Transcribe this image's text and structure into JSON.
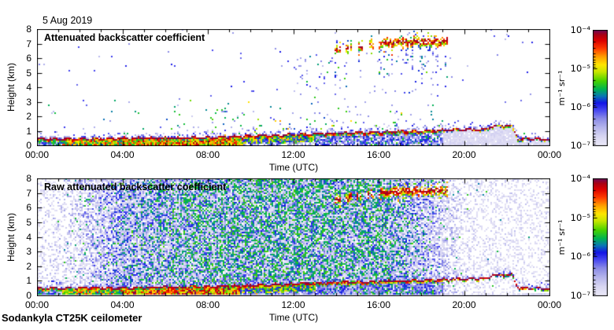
{
  "page": {
    "date_label": "5 Aug 2019",
    "footer_label": "Sodankyla CT25K ceilometer",
    "background": "#ffffff"
  },
  "colormap": {
    "scale": "log10",
    "value_range_log10": [
      -7,
      -4
    ],
    "stops": [
      [
        0.0,
        "#eceaf8"
      ],
      [
        0.08,
        "#d8d6f2"
      ],
      [
        0.16,
        "#b4b4ec"
      ],
      [
        0.24,
        "#8888e6"
      ],
      [
        0.31,
        "#4444f0"
      ],
      [
        0.37,
        "#1414e6"
      ],
      [
        0.43,
        "#0a78b4"
      ],
      [
        0.49,
        "#00b450"
      ],
      [
        0.56,
        "#46d200"
      ],
      [
        0.64,
        "#c8e600"
      ],
      [
        0.7,
        "#ffe600"
      ],
      [
        0.77,
        "#ffa000"
      ],
      [
        0.84,
        "#ff3c00"
      ],
      [
        0.91,
        "#dc0000"
      ],
      [
        0.96,
        "#aa0014"
      ],
      [
        1.0,
        "#6e0a5a"
      ]
    ]
  },
  "chart_data": [
    {
      "type": "heatmap",
      "title": "Attenuated backscatter coefficient",
      "xlabel": "Time (UTC)",
      "ylabel": "Height (km)",
      "x_hours_range": [
        0,
        24
      ],
      "y_km_range": [
        0,
        8
      ],
      "xtick_labels": [
        "00:00",
        "04:00",
        "08:00",
        "12:00",
        "16:00",
        "20:00",
        "00:00"
      ],
      "xtick_hours": [
        0,
        4,
        8,
        12,
        16,
        20,
        24
      ],
      "ytick_labels": [
        "0",
        "1",
        "2",
        "3",
        "4",
        "5",
        "6",
        "7",
        "8"
      ],
      "grid": false,
      "colorbar": {
        "tick_labels": [
          "10⁻⁴",
          "10⁻⁵",
          "10⁻⁶",
          "10⁻⁷"
        ],
        "units": "m⁻¹ sr⁻¹",
        "scale": "log10",
        "value_range_log10": [
          -7,
          -4
        ],
        "position": "right"
      },
      "features": {
        "seed": 11,
        "boundary_layer_top_km": [
          [
            0,
            0.52
          ],
          [
            4,
            0.56
          ],
          [
            8,
            0.63
          ],
          [
            11,
            0.76
          ],
          [
            14,
            0.92
          ],
          [
            17,
            1.02
          ],
          [
            19,
            1.12
          ],
          [
            21,
            1.2
          ],
          [
            21.3,
            1.42
          ],
          [
            22.2,
            1.45
          ],
          [
            22.5,
            0.55
          ],
          [
            24,
            0.5
          ]
        ],
        "surface_intense_hours": [
          0,
          9.5
        ],
        "cloud_layer": {
          "hours": [
            13.8,
            19.25
          ],
          "base_km": [
            [
              13.8,
              6.35
            ],
            [
              15,
              6.45
            ],
            [
              16,
              6.7
            ],
            [
              17,
              6.85
            ],
            [
              19.25,
              6.9
            ]
          ],
          "thickness_km": 0.45,
          "intermittent_before_hour": 16
        },
        "virga_hours": [
          13.8,
          19.25
        ],
        "evening_attenuated_after_hour": 19,
        "noise": null
      }
    },
    {
      "type": "heatmap",
      "title": "Raw attenuated backscatter coefficient",
      "xlabel": "Time (UTC)",
      "ylabel": "Height (km)",
      "x_hours_range": [
        0,
        24
      ],
      "y_km_range": [
        0,
        8
      ],
      "xtick_labels": [
        "00:00",
        "04:00",
        "08:00",
        "12:00",
        "16:00",
        "20:00",
        "00:00"
      ],
      "xtick_hours": [
        0,
        4,
        8,
        12,
        16,
        20,
        24
      ],
      "ytick_labels": [
        "0",
        "1",
        "2",
        "3",
        "4",
        "5",
        "6",
        "7",
        "8"
      ],
      "grid": false,
      "colorbar": {
        "tick_labels": [
          "10⁻⁴",
          "10⁻⁵",
          "10⁻⁶",
          "10⁻⁷"
        ],
        "units": "m⁻¹ sr⁻¹",
        "scale": "log10",
        "value_range_log10": [
          -7,
          -4
        ],
        "position": "right"
      },
      "features": {
        "seed": 77,
        "boundary_layer_top_km": [
          [
            0,
            0.52
          ],
          [
            4,
            0.56
          ],
          [
            8,
            0.63
          ],
          [
            11,
            0.76
          ],
          [
            14,
            0.92
          ],
          [
            17,
            1.02
          ],
          [
            19,
            1.12
          ],
          [
            21,
            1.2
          ],
          [
            21.3,
            1.42
          ],
          [
            22.2,
            1.45
          ],
          [
            22.5,
            0.55
          ],
          [
            24,
            0.5
          ]
        ],
        "surface_intense_hours": [
          0,
          9.5
        ],
        "cloud_layer": {
          "hours": [
            13.8,
            19.25
          ],
          "base_km": [
            [
              13.8,
              6.35
            ],
            [
              15,
              6.45
            ],
            [
              16,
              6.7
            ],
            [
              17,
              6.85
            ],
            [
              19.25,
              6.9
            ]
          ],
          "thickness_km": 0.45,
          "intermittent_before_hour": 16
        },
        "virga_hours": [
          13.8,
          19.25
        ],
        "evening_attenuated_after_hour": 19,
        "noise": {
          "presence_by_hour": [
            [
              0,
              0.3
            ],
            [
              1.3,
              0.32
            ],
            [
              2.5,
              0.62
            ],
            [
              4,
              0.9
            ],
            [
              8,
              0.94
            ],
            [
              16,
              0.94
            ],
            [
              18,
              0.82
            ],
            [
              19.3,
              0.5
            ],
            [
              20,
              0.3
            ],
            [
              24,
              0.28
            ]
          ],
          "green_fraction_by_hour": [
            [
              0,
              0
            ],
            [
              3,
              0.05
            ],
            [
              6,
              0.18
            ],
            [
              9,
              0.3
            ],
            [
              12,
              0.33
            ],
            [
              16,
              0.3
            ],
            [
              17.5,
              0.15
            ],
            [
              19,
              0.02
            ],
            [
              24,
              0
            ]
          ],
          "amplitude_by_hour": [
            [
              0,
              0.25
            ],
            [
              2,
              0.55
            ],
            [
              4,
              1.0
            ],
            [
              8,
              1.15
            ],
            [
              16,
              1.15
            ],
            [
              18,
              0.9
            ],
            [
              19.5,
              0.45
            ],
            [
              20.5,
              0.25
            ],
            [
              24,
              0.22
            ]
          ]
        }
      }
    }
  ]
}
